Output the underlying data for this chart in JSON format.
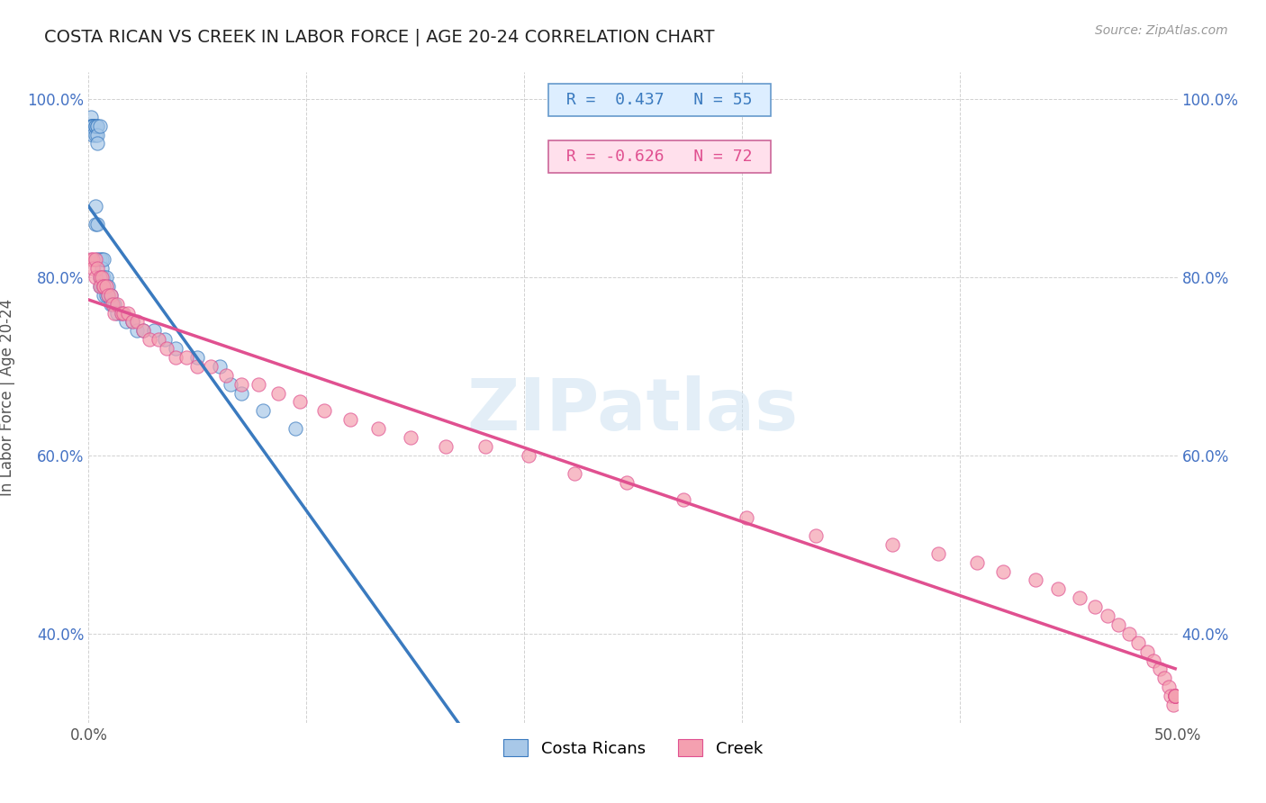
{
  "title": "COSTA RICAN VS CREEK IN LABOR FORCE | AGE 20-24 CORRELATION CHART",
  "source_text": "Source: ZipAtlas.com",
  "ylabel": "In Labor Force | Age 20-24",
  "xlim": [
    0.0,
    0.5
  ],
  "ylim": [
    0.3,
    1.03
  ],
  "blue_R": 0.437,
  "blue_N": 55,
  "pink_R": -0.626,
  "pink_N": 72,
  "blue_color": "#a8c8e8",
  "pink_color": "#f4a0b0",
  "blue_line_color": "#3a7abf",
  "pink_line_color": "#e05090",
  "legend_labels": [
    "Costa Ricans",
    "Creek"
  ],
  "watermark": "ZIPatlas",
  "grid_color": "#cccccc",
  "background_color": "#ffffff",
  "blue_x": [
    0.001,
    0.001,
    0.001,
    0.002,
    0.002,
    0.002,
    0.002,
    0.002,
    0.003,
    0.003,
    0.003,
    0.003,
    0.003,
    0.004,
    0.004,
    0.004,
    0.004,
    0.004,
    0.004,
    0.005,
    0.005,
    0.005,
    0.005,
    0.006,
    0.006,
    0.006,
    0.006,
    0.007,
    0.007,
    0.007,
    0.007,
    0.008,
    0.008,
    0.008,
    0.009,
    0.009,
    0.01,
    0.01,
    0.011,
    0.012,
    0.013,
    0.015,
    0.017,
    0.02,
    0.022,
    0.025,
    0.03,
    0.035,
    0.04,
    0.05,
    0.06,
    0.065,
    0.07,
    0.08,
    0.095
  ],
  "blue_y": [
    0.98,
    0.97,
    0.97,
    0.97,
    0.97,
    0.97,
    0.97,
    0.96,
    0.96,
    0.97,
    0.97,
    0.88,
    0.86,
    0.97,
    0.97,
    0.96,
    0.95,
    0.86,
    0.82,
    0.97,
    0.82,
    0.8,
    0.79,
    0.82,
    0.81,
    0.8,
    0.79,
    0.82,
    0.8,
    0.79,
    0.78,
    0.8,
    0.79,
    0.78,
    0.79,
    0.78,
    0.78,
    0.77,
    0.77,
    0.77,
    0.76,
    0.76,
    0.75,
    0.75,
    0.74,
    0.74,
    0.74,
    0.73,
    0.72,
    0.71,
    0.7,
    0.68,
    0.67,
    0.65,
    0.63
  ],
  "pink_x": [
    0.001,
    0.002,
    0.002,
    0.003,
    0.003,
    0.004,
    0.005,
    0.005,
    0.006,
    0.007,
    0.007,
    0.008,
    0.009,
    0.01,
    0.011,
    0.012,
    0.013,
    0.015,
    0.016,
    0.018,
    0.02,
    0.022,
    0.025,
    0.028,
    0.032,
    0.036,
    0.04,
    0.045,
    0.05,
    0.056,
    0.063,
    0.07,
    0.078,
    0.087,
    0.097,
    0.108,
    0.12,
    0.133,
    0.148,
    0.164,
    0.182,
    0.202,
    0.223,
    0.247,
    0.273,
    0.302,
    0.334,
    0.369,
    0.39,
    0.408,
    0.42,
    0.435,
    0.445,
    0.455,
    0.462,
    0.468,
    0.473,
    0.478,
    0.482,
    0.486,
    0.489,
    0.492,
    0.494,
    0.496,
    0.497,
    0.498,
    0.499,
    0.499,
    0.499,
    0.499,
    0.499,
    0.499
  ],
  "pink_y": [
    0.82,
    0.82,
    0.81,
    0.82,
    0.8,
    0.81,
    0.8,
    0.79,
    0.8,
    0.79,
    0.79,
    0.79,
    0.78,
    0.78,
    0.77,
    0.76,
    0.77,
    0.76,
    0.76,
    0.76,
    0.75,
    0.75,
    0.74,
    0.73,
    0.73,
    0.72,
    0.71,
    0.71,
    0.7,
    0.7,
    0.69,
    0.68,
    0.68,
    0.67,
    0.66,
    0.65,
    0.64,
    0.63,
    0.62,
    0.61,
    0.61,
    0.6,
    0.58,
    0.57,
    0.55,
    0.53,
    0.51,
    0.5,
    0.49,
    0.48,
    0.47,
    0.46,
    0.45,
    0.44,
    0.43,
    0.42,
    0.41,
    0.4,
    0.39,
    0.38,
    0.37,
    0.36,
    0.35,
    0.34,
    0.33,
    0.32,
    0.33,
    0.33,
    0.33,
    0.33,
    0.33,
    0.33
  ]
}
